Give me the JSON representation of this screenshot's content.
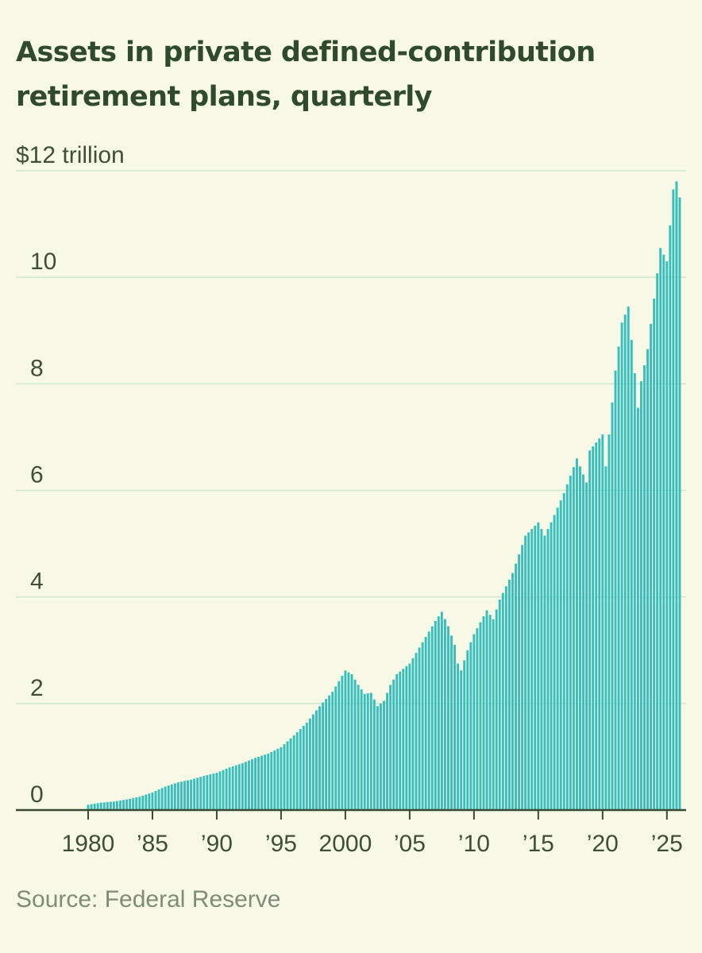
{
  "title": "Assets in private defined-contribution retirement plans, quarterly",
  "source": "Source: Federal Reserve",
  "colors": {
    "bar": "#36bfbd",
    "grid": "#cfe6cf",
    "axis": "#3a4a34",
    "text": "#3e4e38",
    "background": "#f7f8e6"
  },
  "chart_data": {
    "type": "bar",
    "ylabel": "$12 trillion",
    "ylim": [
      0,
      12
    ],
    "y_ticks": [
      0,
      2,
      4,
      6,
      8,
      10,
      12
    ],
    "y_tick_labels": [
      "0",
      "2",
      "4",
      "6",
      "8",
      "10",
      "$12 trillion"
    ],
    "xlim": [
      1980,
      2026
    ],
    "x_ticks": [
      1980,
      1985,
      1990,
      1995,
      2000,
      2005,
      2010,
      2015,
      2020,
      2025
    ],
    "x_tick_labels": [
      "1980",
      "’85",
      "’90",
      "’95",
      "2000",
      "’05",
      "’10",
      "’15",
      "’20",
      "’25"
    ],
    "grid": true,
    "x_unit": "quarter start year",
    "anchors": [
      [
        1980.0,
        0.1
      ],
      [
        1981.0,
        0.14
      ],
      [
        1982.0,
        0.16
      ],
      [
        1983.0,
        0.2
      ],
      [
        1984.0,
        0.25
      ],
      [
        1985.0,
        0.33
      ],
      [
        1986.0,
        0.44
      ],
      [
        1987.0,
        0.52
      ],
      [
        1988.0,
        0.57
      ],
      [
        1989.0,
        0.64
      ],
      [
        1990.0,
        0.7
      ],
      [
        1991.0,
        0.8
      ],
      [
        1992.0,
        0.88
      ],
      [
        1993.0,
        0.98
      ],
      [
        1994.0,
        1.06
      ],
      [
        1995.0,
        1.18
      ],
      [
        1996.0,
        1.4
      ],
      [
        1997.0,
        1.64
      ],
      [
        1998.0,
        1.95
      ],
      [
        1999.0,
        2.22
      ],
      [
        2000.0,
        2.62
      ],
      [
        2000.5,
        2.55
      ],
      [
        2001.0,
        2.35
      ],
      [
        2001.5,
        2.18
      ],
      [
        2002.0,
        2.2
      ],
      [
        2002.5,
        1.95
      ],
      [
        2003.0,
        2.05
      ],
      [
        2003.5,
        2.35
      ],
      [
        2004.0,
        2.55
      ],
      [
        2005.0,
        2.75
      ],
      [
        2006.0,
        3.15
      ],
      [
        2007.0,
        3.55
      ],
      [
        2007.5,
        3.72
      ],
      [
        2008.0,
        3.45
      ],
      [
        2008.5,
        3.1
      ],
      [
        2008.75,
        2.75
      ],
      [
        2009.0,
        2.62
      ],
      [
        2009.5,
        3.0
      ],
      [
        2010.0,
        3.3
      ],
      [
        2011.0,
        3.75
      ],
      [
        2011.5,
        3.58
      ],
      [
        2012.0,
        3.95
      ],
      [
        2013.0,
        4.45
      ],
      [
        2014.0,
        5.15
      ],
      [
        2015.0,
        5.4
      ],
      [
        2015.5,
        5.15
      ],
      [
        2016.0,
        5.4
      ],
      [
        2017.0,
        5.95
      ],
      [
        2018.0,
        6.6
      ],
      [
        2018.75,
        6.15
      ],
      [
        2019.0,
        6.75
      ],
      [
        2020.0,
        7.05
      ],
      [
        2020.25,
        6.45
      ],
      [
        2021.0,
        8.25
      ],
      [
        2021.5,
        9.15
      ],
      [
        2022.0,
        9.45
      ],
      [
        2022.5,
        8.2
      ],
      [
        2022.75,
        7.55
      ],
      [
        2023.0,
        8.05
      ],
      [
        2023.5,
        8.65
      ],
      [
        2024.0,
        9.6
      ],
      [
        2024.5,
        10.55
      ],
      [
        2025.0,
        10.3
      ],
      [
        2025.5,
        11.65
      ],
      [
        2025.75,
        11.8
      ],
      [
        2026.0,
        11.5
      ]
    ]
  }
}
